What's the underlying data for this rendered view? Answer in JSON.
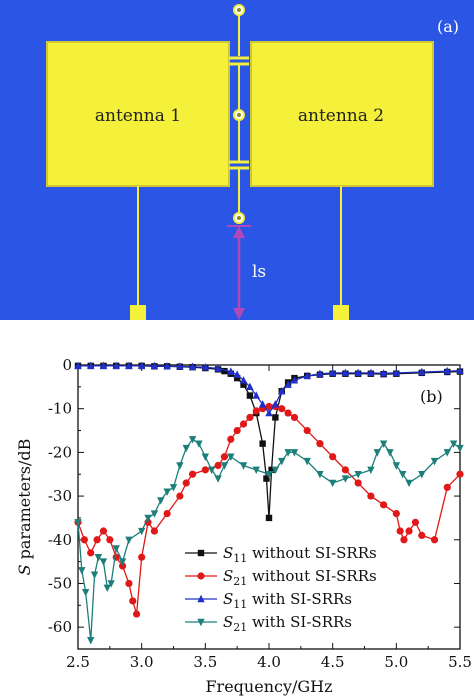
{
  "panel_a": {
    "tag": "(a)",
    "antenna1_label": "antenna 1",
    "antenna2_label": "antenna 2",
    "distance_label": "ls",
    "colors": {
      "background": "#2b55e4",
      "antenna": "#f5f03a",
      "arrow": "#b048b8",
      "border": "#cfc733"
    }
  },
  "panel_b": {
    "tag": "(b)",
    "ylabel_italic": "S",
    "ylabel_rest": " parameters/dB",
    "xlabel": "Frequency/GHz"
  },
  "chart_data": {
    "type": "line",
    "xlim": [
      2.5,
      5.5
    ],
    "ylim": [
      -65,
      0
    ],
    "xticks": [
      "2.5",
      "3.0",
      "3.5",
      "4.0",
      "4.5",
      "5.0",
      "5.5"
    ],
    "yticks": [
      "0",
      "-10",
      "-20",
      "-30",
      "-40",
      "-50",
      "-60"
    ],
    "xtick_values": [
      2.5,
      3.0,
      3.5,
      4.0,
      4.5,
      5.0,
      5.5
    ],
    "ytick_values": [
      0,
      -10,
      -20,
      -30,
      -40,
      -50,
      -60
    ],
    "legend_position": "lower-right",
    "series": [
      {
        "name_sym": "S",
        "name_sub": "11",
        "name_rest": " without SI-SRRs",
        "color": "#111111",
        "marker": "square",
        "x": [
          2.5,
          2.6,
          2.7,
          2.8,
          2.9,
          3.0,
          3.1,
          3.2,
          3.3,
          3.4,
          3.5,
          3.6,
          3.65,
          3.7,
          3.75,
          3.8,
          3.85,
          3.9,
          3.95,
          3.98,
          4.0,
          4.02,
          4.05,
          4.1,
          4.15,
          4.2,
          4.3,
          4.4,
          4.5,
          4.6,
          4.7,
          4.8,
          4.9,
          5.0,
          5.2,
          5.4,
          5.5
        ],
        "y": [
          -0.2,
          -0.2,
          -0.2,
          -0.2,
          -0.2,
          -0.2,
          -0.3,
          -0.3,
          -0.4,
          -0.5,
          -0.7,
          -1.0,
          -1.4,
          -2.0,
          -3.0,
          -4.5,
          -7.0,
          -11,
          -18,
          -26,
          -35,
          -24,
          -12,
          -6,
          -4,
          -3,
          -2.5,
          -2.2,
          -2.0,
          -2.0,
          -2.0,
          -2.0,
          -2.1,
          -2.0,
          -1.8,
          -1.6,
          -1.5
        ]
      },
      {
        "name_sym": "S",
        "name_sub": "21",
        "name_rest": " without SI-SRRs",
        "color": "#e01818",
        "marker": "circle",
        "x": [
          2.5,
          2.55,
          2.6,
          2.65,
          2.7,
          2.75,
          2.8,
          2.85,
          2.9,
          2.93,
          2.96,
          3.0,
          3.05,
          3.1,
          3.2,
          3.3,
          3.35,
          3.4,
          3.5,
          3.6,
          3.65,
          3.7,
          3.75,
          3.8,
          3.85,
          3.9,
          3.95,
          4.0,
          4.05,
          4.1,
          4.15,
          4.2,
          4.3,
          4.4,
          4.5,
          4.6,
          4.7,
          4.8,
          4.9,
          5.0,
          5.03,
          5.06,
          5.1,
          5.15,
          5.2,
          5.3,
          5.4,
          5.5
        ],
        "y": [
          -36,
          -40,
          -43,
          -40,
          -38,
          -40,
          -44,
          -46,
          -50,
          -54,
          -57,
          -44,
          -36,
          -38,
          -34,
          -30,
          -27,
          -25,
          -24,
          -23,
          -21,
          -17,
          -15,
          -13.5,
          -12,
          -10.5,
          -10,
          -9.5,
          -9.5,
          -10,
          -11,
          -12,
          -15,
          -18,
          -21,
          -24,
          -27,
          -30,
          -32,
          -34,
          -38,
          -40,
          -38,
          -36,
          -39,
          -40,
          -28,
          -25
        ]
      },
      {
        "name_sym": "S",
        "name_sub": "11",
        "name_rest": " with SI-SRRs",
        "color": "#2030c8",
        "marker": "triangle-up",
        "x": [
          2.5,
          2.6,
          2.7,
          2.8,
          2.9,
          3.0,
          3.1,
          3.2,
          3.3,
          3.4,
          3.5,
          3.6,
          3.7,
          3.75,
          3.8,
          3.85,
          3.9,
          3.95,
          4.0,
          4.05,
          4.1,
          4.15,
          4.2,
          4.3,
          4.4,
          4.5,
          4.6,
          4.7,
          4.8,
          4.9,
          5.0,
          5.2,
          5.4,
          5.5
        ],
        "y": [
          -0.2,
          -0.2,
          -0.2,
          -0.2,
          -0.2,
          -0.2,
          -0.2,
          -0.3,
          -0.3,
          -0.4,
          -0.5,
          -0.8,
          -1.5,
          -2.2,
          -3.5,
          -5,
          -7,
          -9,
          -11,
          -9,
          -6,
          -4.5,
          -3.5,
          -2.5,
          -2,
          -1.8,
          -1.8,
          -1.8,
          -1.8,
          -1.9,
          -1.8,
          -1.6,
          -1.4,
          -1.3
        ]
      },
      {
        "name_sym": "S",
        "name_sub": "21",
        "name_rest": " with SI-SRRs",
        "color": "#1c7f7a",
        "marker": "triangle-down",
        "x": [
          2.5,
          2.53,
          2.56,
          2.6,
          2.63,
          2.66,
          2.7,
          2.73,
          2.76,
          2.8,
          2.85,
          2.9,
          3.0,
          3.05,
          3.1,
          3.15,
          3.2,
          3.25,
          3.3,
          3.35,
          3.4,
          3.45,
          3.5,
          3.55,
          3.6,
          3.65,
          3.7,
          3.8,
          3.9,
          4.0,
          4.05,
          4.1,
          4.15,
          4.2,
          4.3,
          4.4,
          4.5,
          4.6,
          4.7,
          4.8,
          4.85,
          4.9,
          4.95,
          5.0,
          5.05,
          5.1,
          5.2,
          5.3,
          5.4,
          5.45,
          5.5
        ],
        "y": [
          -36,
          -47,
          -52,
          -63,
          -48,
          -44,
          -45,
          -51,
          -50,
          -42,
          -45,
          -40,
          -38,
          -35,
          -34,
          -31,
          -29,
          -28,
          -23,
          -19,
          -17,
          -18,
          -21,
          -24,
          -26,
          -23,
          -21,
          -23,
          -24,
          -25,
          -24,
          -22,
          -20,
          -20,
          -22,
          -25,
          -27,
          -26,
          -25,
          -24,
          -20,
          -18,
          -20,
          -23,
          -25,
          -27,
          -25,
          -22,
          -20,
          -18,
          -19
        ]
      }
    ]
  }
}
